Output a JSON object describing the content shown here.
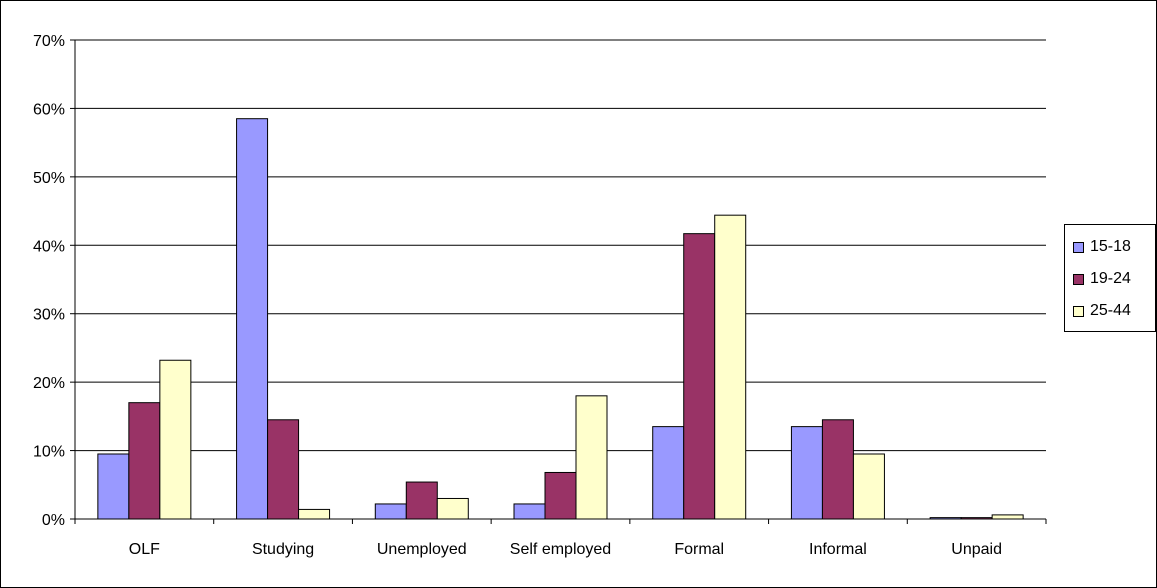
{
  "chart_data": {
    "type": "bar",
    "categories": [
      "OLF",
      "Studying",
      "Unemployed",
      "Self employed",
      "Formal",
      "Informal",
      "Unpaid"
    ],
    "series": [
      {
        "name": "15-18",
        "color": "#9999ff",
        "values": [
          9.5,
          58.5,
          2.2,
          2.2,
          13.5,
          13.5,
          0.2
        ]
      },
      {
        "name": "19-24",
        "color": "#993366",
        "values": [
          17.0,
          14.5,
          5.4,
          6.8,
          41.7,
          14.5,
          0.2
        ]
      },
      {
        "name": "25-44",
        "color": "#ffffcc",
        "values": [
          23.2,
          1.4,
          3.0,
          18.0,
          44.4,
          9.5,
          0.6
        ]
      }
    ],
    "ylim": [
      0,
      70
    ],
    "yticks": [
      "0%",
      "10%",
      "20%",
      "30%",
      "40%",
      "50%",
      "60%",
      "70%"
    ],
    "grid": true,
    "legend_position": "right"
  }
}
